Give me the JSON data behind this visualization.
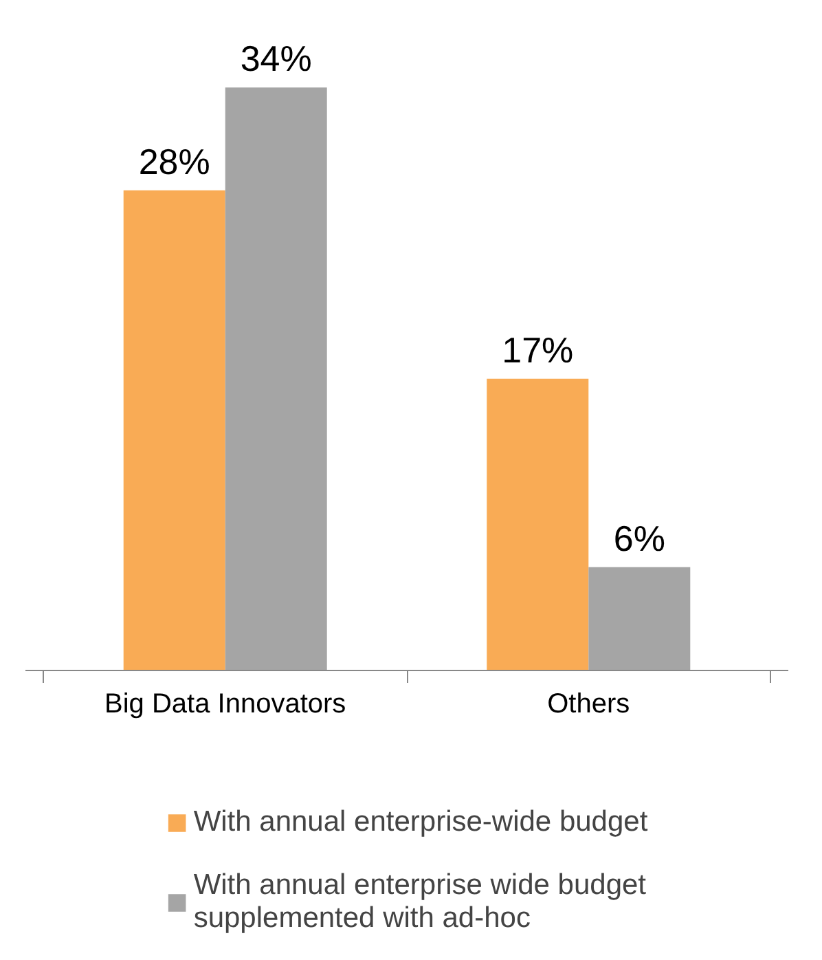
{
  "chart_data": {
    "type": "bar",
    "categories": [
      "Big Data Innovators",
      "Others"
    ],
    "series": [
      {
        "name": "With annual enterprise-wide budget",
        "color": "#f9ab55",
        "values": [
          28,
          17
        ],
        "value_labels": [
          "28%",
          "17%"
        ]
      },
      {
        "name": "With annual enterprise wide budget supplemented with ad-hoc",
        "color": "#a5a5a5",
        "values": [
          34,
          6
        ],
        "value_labels": [
          "34%",
          "6%"
        ]
      }
    ],
    "legend": "bottom"
  }
}
